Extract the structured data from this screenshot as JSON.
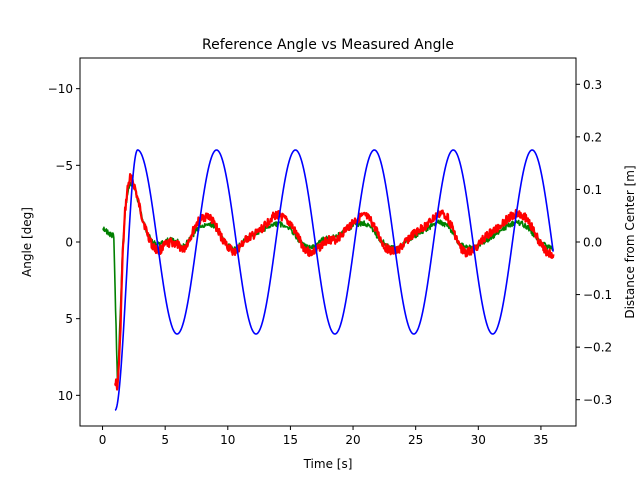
{
  "chart_data": {
    "type": "line",
    "title": "Reference Angle vs Measured Angle",
    "xlabel": "Time [s]",
    "ylabel": "Angle [deg]",
    "y2label": "Distance from Center [m]",
    "xlim": [
      -1.8,
      37.8
    ],
    "ylim": [
      12,
      -12
    ],
    "y2lim": [
      -0.35,
      0.35
    ],
    "left_axis_inverted": true,
    "xticks": [
      0,
      5,
      10,
      15,
      20,
      25,
      30,
      35
    ],
    "xtick_labels": [
      "0",
      "5",
      "10",
      "15",
      "20",
      "25",
      "30",
      "35"
    ],
    "yticks": [
      -10,
      -5,
      0,
      5,
      10
    ],
    "ytick_labels": [
      "−10",
      "−5",
      "0",
      "5",
      "10"
    ],
    "y2ticks": [
      0.3,
      0.2,
      0.1,
      0.0,
      -0.1,
      -0.2,
      -0.3
    ],
    "y2tick_labels": [
      "0.3",
      "0.2",
      "0.1",
      "0.0",
      "−0.1",
      "−0.2",
      "−0.3"
    ],
    "grid": false,
    "series": [
      {
        "axis": "left",
        "color": "#ff0000",
        "x": [
          1.0,
          1.2,
          1.4,
          1.6,
          1.8,
          2.0,
          2.2,
          2.4,
          2.6,
          2.8,
          3.2,
          3.6,
          4.0,
          4.5,
          5.0,
          5.5,
          6.0,
          6.5,
          7.0,
          7.5,
          8.0,
          8.5,
          9.0,
          9.5,
          10.0,
          10.5,
          11.0,
          11.5,
          12.0,
          12.5,
          13.0,
          13.5,
          14.0,
          14.5,
          15.0,
          15.5,
          16.0,
          16.5,
          17.0,
          17.5,
          18.0,
          18.5,
          19.0,
          19.5,
          20.0,
          20.5,
          21.0,
          21.5,
          22.0,
          22.5,
          23.0,
          23.5,
          24.0,
          24.5,
          25.0,
          25.5,
          26.0,
          26.5,
          27.0,
          27.5,
          28.0,
          28.5,
          29.0,
          29.5,
          30.0,
          30.5,
          31.0,
          31.5,
          32.0,
          32.5,
          33.0,
          33.5,
          34.0,
          34.5,
          35.0,
          35.5,
          36.0
        ],
        "y": [
          9.0,
          9.5,
          6.5,
          1.0,
          -2.0,
          -3.5,
          -4.2,
          -4.0,
          -3.5,
          -2.8,
          -1.5,
          -0.5,
          0.3,
          0.6,
          0.2,
          0.0,
          0.2,
          0.5,
          -0.3,
          -1.2,
          -1.6,
          -1.7,
          -1.1,
          -0.3,
          0.3,
          0.7,
          0.3,
          -0.2,
          -0.4,
          -0.7,
          -1.1,
          -1.6,
          -1.8,
          -1.5,
          -1.2,
          -0.5,
          0.3,
          0.7,
          0.6,
          0.2,
          -0.2,
          -0.1,
          -0.4,
          -0.9,
          -1.3,
          -1.6,
          -1.7,
          -1.3,
          -0.5,
          0.3,
          0.6,
          0.6,
          0.2,
          -0.3,
          -0.6,
          -0.9,
          -1.2,
          -1.6,
          -1.9,
          -1.7,
          -0.8,
          0.3,
          0.7,
          0.6,
          0.2,
          -0.3,
          -0.6,
          -0.9,
          -1.3,
          -1.6,
          -1.9,
          -1.8,
          -1.4,
          -0.6,
          0.2,
          0.7,
          0.8
        ]
      },
      {
        "axis": "left",
        "color": "#008000",
        "x": [
          0.0,
          0.3,
          0.6,
          0.9,
          1.0,
          1.2,
          1.4,
          1.6,
          1.8,
          2.0,
          2.2,
          2.4,
          2.6,
          2.8,
          3.2,
          3.6,
          4.0,
          4.5,
          5.0,
          5.5,
          6.0,
          6.5,
          7.0,
          7.5,
          8.0,
          8.5,
          9.0,
          9.5,
          10.0,
          10.5,
          11.0,
          11.5,
          12.0,
          12.5,
          13.0,
          13.5,
          14.0,
          14.5,
          15.0,
          15.5,
          16.0,
          16.5,
          17.0,
          17.5,
          18.0,
          18.5,
          19.0,
          19.5,
          20.0,
          20.5,
          21.0,
          21.5,
          22.0,
          22.5,
          23.0,
          23.5,
          24.0,
          24.5,
          25.0,
          25.5,
          26.0,
          26.5,
          27.0,
          27.5,
          28.0,
          28.5,
          29.0,
          29.5,
          30.0,
          30.5,
          31.0,
          31.5,
          32.0,
          32.5,
          33.0,
          33.5,
          34.0,
          34.5,
          35.0,
          35.5,
          36.0
        ],
        "y": [
          -1.0,
          -0.7,
          -0.5,
          -0.4,
          3.0,
          9.5,
          5.0,
          0.5,
          -2.0,
          -3.2,
          -3.8,
          -3.9,
          -3.5,
          -2.8,
          -1.5,
          -0.5,
          0.0,
          0.2,
          0.0,
          -0.2,
          0.0,
          0.3,
          -0.2,
          -0.8,
          -1.1,
          -1.2,
          -1.0,
          -0.3,
          0.2,
          0.5,
          0.2,
          -0.2,
          -0.5,
          -0.7,
          -0.9,
          -1.1,
          -1.2,
          -1.1,
          -0.9,
          -0.3,
          0.2,
          0.4,
          0.3,
          -0.1,
          -0.3,
          -0.3,
          -0.5,
          -0.8,
          -1.1,
          -1.2,
          -1.2,
          -0.9,
          -0.3,
          0.1,
          0.4,
          0.4,
          0.2,
          -0.2,
          -0.4,
          -0.7,
          -0.9,
          -1.2,
          -1.3,
          -1.1,
          -0.5,
          0.1,
          0.3,
          0.4,
          0.3,
          0.0,
          -0.3,
          -0.6,
          -0.9,
          -1.1,
          -1.3,
          -1.2,
          -0.9,
          -0.4,
          0.1,
          0.3,
          0.5
        ]
      },
      {
        "axis": "right",
        "color": "#0000ff",
        "sine": {
          "x_start": 1.0,
          "x_end": 36.0,
          "x_peak": 2.8,
          "period": 6.3,
          "pre_peak_min": -0.32,
          "amplitude": 0.175,
          "offset": 0.0
        },
        "x": [
          1.0,
          1.3,
          2.8,
          5.95,
          9.1,
          12.25,
          15.4,
          18.55,
          21.7,
          24.85,
          28.0,
          31.15,
          34.3,
          36.0
        ],
        "y": [
          -0.31,
          -0.32,
          0.175,
          -0.175,
          0.175,
          -0.175,
          0.175,
          -0.175,
          0.175,
          -0.175,
          0.175,
          -0.175,
          0.175,
          -0.1
        ]
      }
    ]
  }
}
